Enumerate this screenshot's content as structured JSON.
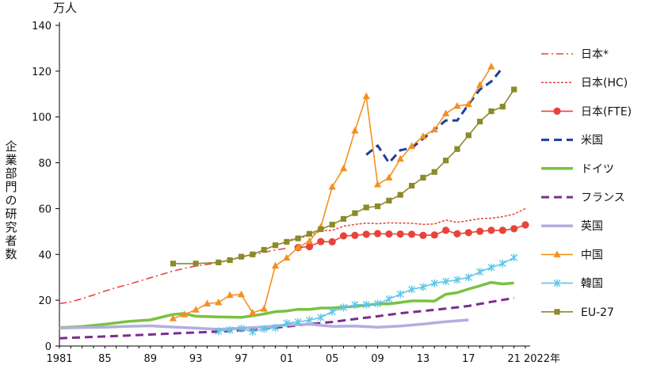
{
  "chart_data": {
    "type": "line",
    "unit": "万人",
    "ylabel": "企業部門の研究者数",
    "xlabel_suffix": "年",
    "ylim": [
      0,
      140
    ],
    "yticks": [
      0,
      20,
      40,
      60,
      80,
      100,
      120,
      140
    ],
    "xlim": [
      1981,
      2022
    ],
    "xtick_labels": [
      {
        "year": 1981,
        "label": "1981"
      },
      {
        "year": 1985,
        "label": "85"
      },
      {
        "year": 1989,
        "label": "89"
      },
      {
        "year": 1993,
        "label": "93"
      },
      {
        "year": 1997,
        "label": "97"
      },
      {
        "year": 2001,
        "label": "01"
      },
      {
        "year": 2005,
        "label": "05"
      },
      {
        "year": 2009,
        "label": "09"
      },
      {
        "year": 2013,
        "label": "13"
      },
      {
        "year": 2017,
        "label": "17"
      },
      {
        "year": 2021,
        "label": "21"
      },
      {
        "year": 2022,
        "label": "2022年"
      }
    ],
    "grid": false,
    "legend_position": "right",
    "series": [
      {
        "name": "日本*",
        "color": "#e8433a",
        "style": "dashdot",
        "marker": "none",
        "x": [
          1981,
          1982,
          1983,
          1984,
          1985,
          1986,
          1987,
          1988,
          1989,
          1990,
          1991,
          1992,
          1993,
          1994,
          1995,
          1996,
          1997,
          1998,
          1999,
          2000,
          2001
        ],
        "y": [
          18.5,
          19.3,
          20.7,
          22.3,
          24.0,
          25.5,
          26.8,
          28.3,
          29.8,
          31.3,
          32.7,
          33.9,
          34.9,
          35.6,
          36.5,
          37.6,
          38.8,
          39.8,
          40.9,
          41.9,
          42.7
        ]
      },
      {
        "name": "日本(HC)",
        "color": "#e8433a",
        "style": "dotted",
        "marker": "none",
        "x": [
          2001,
          2002,
          2003,
          2004,
          2005,
          2006,
          2007,
          2008,
          2009,
          2010,
          2011,
          2012,
          2013,
          2014,
          2015,
          2016,
          2017,
          2018,
          2019,
          2020,
          2021,
          2022
        ],
        "y": [
          46.0,
          47.2,
          48.1,
          50.3,
          50.5,
          52.3,
          53.1,
          53.7,
          53.4,
          53.8,
          53.7,
          53.6,
          53.1,
          53.3,
          55.0,
          54.0,
          54.8,
          55.6,
          55.8,
          56.5,
          57.6,
          60.0
        ]
      },
      {
        "name": "日本(FTE)",
        "color": "#e8433a",
        "style": "solid",
        "marker": "circle",
        "x": [
          2002,
          2003,
          2004,
          2005,
          2006,
          2007,
          2008,
          2009,
          2010,
          2011,
          2012,
          2013,
          2014,
          2015,
          2016,
          2017,
          2018,
          2019,
          2020,
          2021,
          2022
        ],
        "y": [
          43.0,
          43.4,
          45.6,
          45.5,
          48.1,
          48.3,
          48.8,
          49.1,
          48.9,
          48.9,
          48.8,
          48.3,
          48.5,
          50.5,
          49.0,
          49.5,
          50.1,
          50.5,
          50.5,
          51.2,
          52.9
        ]
      },
      {
        "name": "米国",
        "color": "#1f3f99",
        "style": "dashed",
        "marker": "none",
        "x": [
          2008,
          2009,
          2010,
          2011,
          2012,
          2013,
          2014,
          2015,
          2016,
          2017,
          2018,
          2019,
          2020
        ],
        "y": [
          83.5,
          87.5,
          80.0,
          85.5,
          86.5,
          90.5,
          94.5,
          98.5,
          98.5,
          105.5,
          112.0,
          115.5,
          121.5
        ]
      },
      {
        "name": "ドイツ",
        "color": "#7ac142",
        "style": "solid-thick",
        "marker": "none",
        "x": [
          1981,
          1983,
          1985,
          1987,
          1989,
          1991,
          1992,
          1993,
          1995,
          1997,
          1998,
          1999,
          2000,
          2001,
          2002,
          2003,
          2004,
          2005,
          2006,
          2007,
          2008,
          2009,
          2010,
          2011,
          2012,
          2013,
          2014,
          2015,
          2016,
          2017,
          2018,
          2019,
          2020,
          2021
        ],
        "y": [
          8.0,
          8.5,
          9.5,
          10.7,
          11.4,
          13.8,
          14.2,
          13.0,
          12.7,
          12.5,
          13.2,
          14.0,
          15.0,
          15.3,
          16.0,
          16.0,
          16.6,
          16.6,
          17.0,
          17.3,
          17.9,
          18.4,
          18.4,
          19.0,
          19.7,
          19.7,
          19.6,
          22.6,
          23.3,
          24.9,
          26.3,
          27.8,
          27.1,
          27.5
        ]
      },
      {
        "name": "フランス",
        "color": "#7b2d8e",
        "style": "dashed",
        "marker": "none",
        "x": [
          1981,
          1983,
          1985,
          1987,
          1989,
          1991,
          1993,
          1995,
          1997,
          1999,
          2001,
          2003,
          2005,
          2007,
          2009,
          2011,
          2013,
          2015,
          2017,
          2019,
          2021
        ],
        "y": [
          3.4,
          3.8,
          4.2,
          4.6,
          5.0,
          5.5,
          5.9,
          6.3,
          6.8,
          7.5,
          8.5,
          9.6,
          10.5,
          11.8,
          13.0,
          14.3,
          15.3,
          16.3,
          17.5,
          19.3,
          21.0
        ]
      },
      {
        "name": "英国",
        "color": "#b2aee0",
        "style": "solid-thick",
        "marker": "none",
        "x": [
          1981,
          1983,
          1985,
          1987,
          1989,
          1991,
          1993,
          1995,
          1997,
          1999,
          2001,
          2003,
          2005,
          2007,
          2009,
          2011,
          2013,
          2015,
          2017
        ],
        "y": [
          7.8,
          8.1,
          8.2,
          8.6,
          8.8,
          8.3,
          7.8,
          7.3,
          7.8,
          8.3,
          9.2,
          9.5,
          8.6,
          8.7,
          8.2,
          8.7,
          9.6,
          10.6,
          11.4
        ]
      },
      {
        "name": "中国",
        "color": "#f39020",
        "style": "solid",
        "marker": "triangle",
        "x": [
          1991,
          1992,
          1993,
          1994,
          1995,
          1996,
          1997,
          1998,
          1999,
          2000,
          2001,
          2002,
          2003,
          2004,
          2005,
          2006,
          2007,
          2008,
          2009,
          2010,
          2011,
          2012,
          2013,
          2014,
          2015,
          2016,
          2017,
          2018,
          2019
        ],
        "y": [
          12.0,
          13.8,
          15.8,
          18.5,
          19.0,
          22.2,
          22.5,
          14.5,
          16.2,
          35.0,
          38.5,
          43.0,
          45.8,
          52.0,
          69.5,
          77.5,
          94.0,
          109.0,
          70.5,
          73.5,
          81.7,
          87.3,
          91.5,
          94.5,
          101.5,
          104.8,
          105.5,
          114.0,
          122.0
        ]
      },
      {
        "name": "韓国",
        "color": "#5ec6e8",
        "style": "solid",
        "marker": "star",
        "x": [
          1995,
          1996,
          1997,
          1998,
          1999,
          2000,
          2001,
          2002,
          2003,
          2004,
          2005,
          2006,
          2007,
          2008,
          2009,
          2010,
          2011,
          2012,
          2013,
          2014,
          2015,
          2016,
          2017,
          2018,
          2019,
          2020,
          2021
        ],
        "y": [
          6.5,
          7.0,
          7.6,
          6.2,
          7.5,
          8.0,
          10.0,
          10.5,
          11.3,
          12.5,
          15.0,
          16.8,
          18.0,
          18.1,
          18.5,
          20.5,
          22.7,
          24.7,
          25.8,
          27.4,
          28.2,
          28.9,
          30.0,
          32.4,
          34.3,
          36.0,
          38.6
        ]
      },
      {
        "name": "EU-27",
        "color": "#8c8a2a",
        "style": "solid",
        "marker": "square",
        "x": [
          1991,
          1993,
          1995,
          1996,
          1997,
          1998,
          1999,
          2000,
          2001,
          2002,
          2003,
          2004,
          2005,
          2006,
          2007,
          2008,
          2009,
          2010,
          2011,
          2012,
          2013,
          2014,
          2015,
          2016,
          2017,
          2018,
          2019,
          2020,
          2021
        ],
        "y": [
          36.0,
          36.0,
          36.5,
          37.5,
          39.0,
          40.0,
          42.0,
          44.0,
          45.5,
          47.0,
          49.0,
          51.0,
          53.0,
          55.5,
          58.0,
          60.5,
          61.0,
          63.5,
          66.0,
          70.0,
          73.5,
          76.0,
          81.0,
          86.0,
          92.0,
          98.0,
          102.5,
          104.5,
          112.0
        ]
      }
    ]
  }
}
